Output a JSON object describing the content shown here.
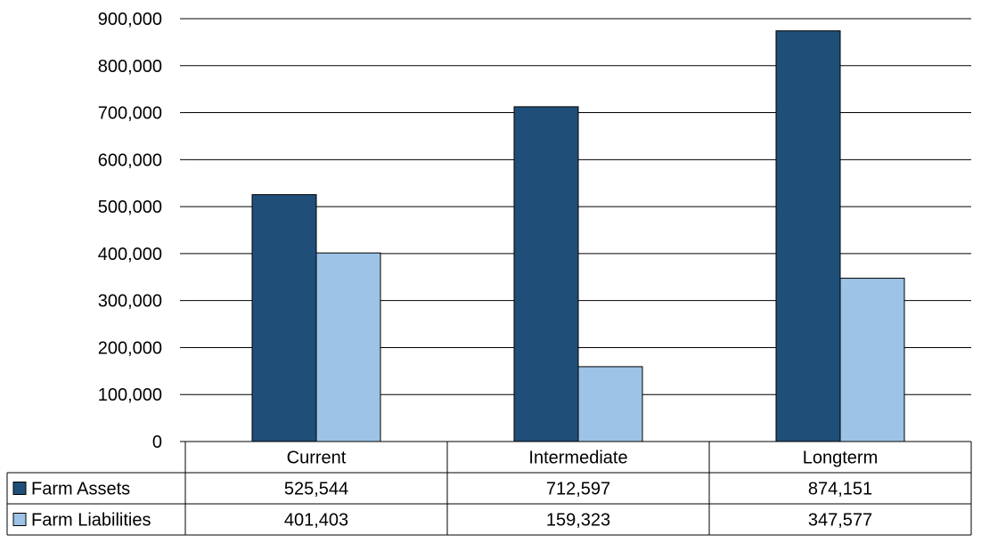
{
  "chart_data": {
    "type": "bar",
    "categories": [
      "Current",
      "Intermediate",
      "Longterm"
    ],
    "series": [
      {
        "name": "Farm Assets",
        "values": [
          525544,
          712597,
          874151
        ],
        "color": "#1f4e79",
        "value_labels": [
          "525,544",
          "712,597",
          "874,151"
        ]
      },
      {
        "name": "Farm Liabilities",
        "values": [
          401403,
          159323,
          347577
        ],
        "color": "#9dc3e6",
        "value_labels": [
          "401,403",
          "159,323",
          "347,577"
        ]
      }
    ],
    "ylim": [
      0,
      900000
    ],
    "yticks": [
      0,
      100000,
      200000,
      300000,
      400000,
      500000,
      600000,
      700000,
      800000,
      900000
    ],
    "ytick_labels": [
      "0",
      "100,000",
      "200,000",
      "300,000",
      "400,000",
      "500,000",
      "600,000",
      "700,000",
      "800,000",
      "900,000"
    ],
    "grid": true,
    "legend": "data-table"
  }
}
